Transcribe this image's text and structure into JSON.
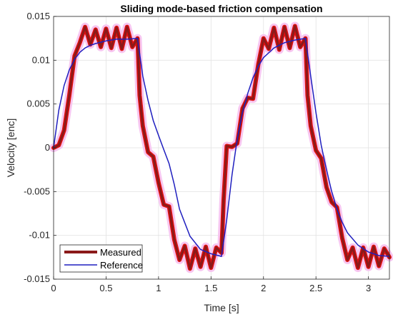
{
  "chart_data": {
    "type": "line",
    "title": "Sliding mode-based friction compensation",
    "xlabel": "Time [s]",
    "ylabel": "Velocity [enc]",
    "xlim": [
      0,
      3.2
    ],
    "ylim": [
      -0.015,
      0.015
    ],
    "xticks": [
      0,
      0.5,
      1,
      1.5,
      2,
      2.5,
      3
    ],
    "xtick_labels": [
      "0",
      "0.5",
      "1",
      "1.5",
      "2",
      "2.5",
      "3"
    ],
    "yticks": [
      -0.015,
      -0.01,
      -0.005,
      0,
      0.005,
      0.01,
      0.015
    ],
    "ytick_labels": [
      "-0.015",
      "-0.01",
      "-0.005",
      "0",
      "0.005",
      "0.01",
      "0.015"
    ],
    "grid": true,
    "legend_position": "bottom-left",
    "series": [
      {
        "name": "Measured",
        "color": "#8b1a1a",
        "x": [
          0,
          0.05,
          0.1,
          0.15,
          0.2,
          0.25,
          0.3,
          0.35,
          0.4,
          0.45,
          0.5,
          0.55,
          0.6,
          0.65,
          0.7,
          0.75,
          0.8,
          0.82,
          0.85,
          0.9,
          0.95,
          1.0,
          1.05,
          1.1,
          1.15,
          1.2,
          1.25,
          1.3,
          1.35,
          1.4,
          1.45,
          1.5,
          1.55,
          1.6,
          1.62,
          1.65,
          1.7,
          1.75,
          1.8,
          1.85,
          1.9,
          1.95,
          2.0,
          2.05,
          2.1,
          2.15,
          2.2,
          2.25,
          2.3,
          2.35,
          2.4,
          2.42,
          2.45,
          2.5,
          2.55,
          2.6,
          2.65,
          2.7,
          2.75,
          2.8,
          2.85,
          2.9,
          2.95,
          3.0,
          3.05,
          3.1,
          3.15,
          3.2
        ],
        "y": [
          0,
          0.0003,
          0.002,
          0.006,
          0.0105,
          0.012,
          0.0138,
          0.0118,
          0.0135,
          0.0115,
          0.0136,
          0.0114,
          0.0137,
          0.0113,
          0.0138,
          0.0115,
          0.0125,
          0.006,
          0.0025,
          -0.0005,
          -0.001,
          -0.004,
          -0.0065,
          -0.0067,
          -0.0105,
          -0.0128,
          -0.0112,
          -0.0138,
          -0.0115,
          -0.0136,
          -0.0113,
          -0.0137,
          -0.0114,
          -0.012,
          -0.006,
          0.0002,
          0.0001,
          0.0005,
          0.0045,
          0.0057,
          0.0056,
          0.0095,
          0.0125,
          0.0113,
          0.0137,
          0.0112,
          0.0138,
          0.0114,
          0.0139,
          0.0115,
          0.0125,
          0.006,
          0.0025,
          -0.0003,
          -0.0012,
          -0.0045,
          -0.0062,
          -0.0068,
          -0.0103,
          -0.0128,
          -0.0114,
          -0.0137,
          -0.0114,
          -0.0136,
          -0.0113,
          -0.0135,
          -0.0115,
          -0.0125
        ]
      },
      {
        "name": "Reference",
        "color": "#1f1fbf",
        "x": [
          0,
          0.05,
          0.1,
          0.15,
          0.2,
          0.25,
          0.3,
          0.35,
          0.4,
          0.5,
          0.6,
          0.7,
          0.8,
          0.85,
          0.9,
          0.95,
          1.0,
          1.05,
          1.1,
          1.15,
          1.2,
          1.3,
          1.4,
          1.5,
          1.6,
          1.65,
          1.7,
          1.75,
          1.8,
          1.85,
          1.9,
          1.95,
          2.0,
          2.1,
          2.2,
          2.3,
          2.4,
          2.45,
          2.5,
          2.55,
          2.6,
          2.65,
          2.7,
          2.75,
          2.8,
          2.9,
          3.0,
          3.1,
          3.2
        ],
        "y": [
          0,
          0.0043,
          0.0071,
          0.0089,
          0.0101,
          0.0109,
          0.0114,
          0.0117,
          0.0119,
          0.0122,
          0.0124,
          0.0124,
          0.0125,
          0.0082,
          0.0054,
          0.0031,
          0.0014,
          -0.0002,
          -0.0018,
          -0.0042,
          -0.007,
          -0.0101,
          -0.0116,
          -0.0121,
          -0.0124,
          -0.0082,
          -0.0031,
          0.001,
          0.004,
          0.0062,
          0.008,
          0.0093,
          0.0103,
          0.0114,
          0.012,
          0.0123,
          0.0125,
          0.0082,
          0.004,
          0.0003,
          -0.0025,
          -0.005,
          -0.007,
          -0.0085,
          -0.0097,
          -0.0111,
          -0.0119,
          -0.0123,
          -0.0124
        ]
      }
    ]
  }
}
